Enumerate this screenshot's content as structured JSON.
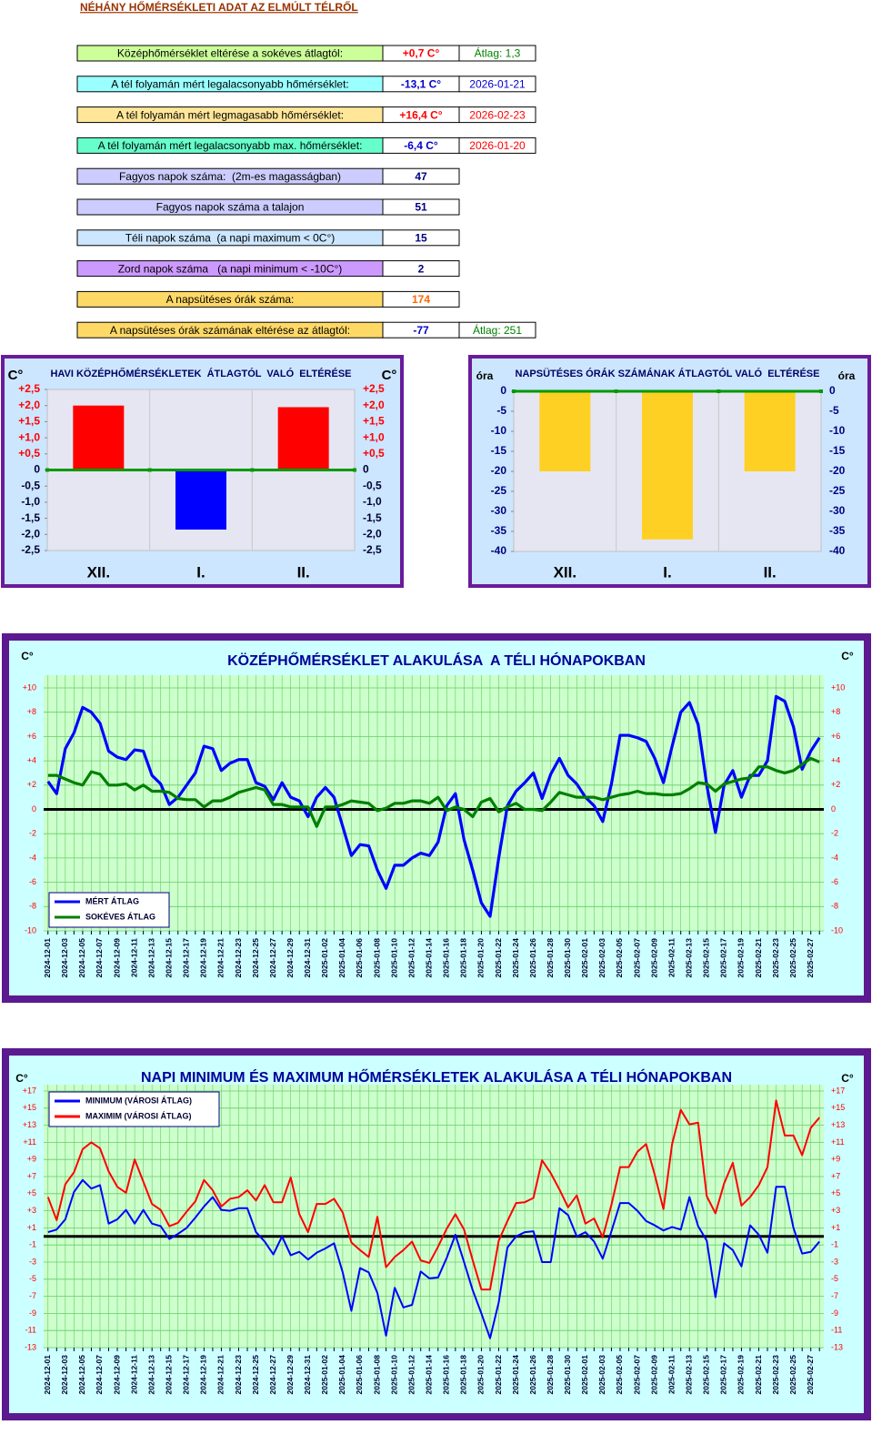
{
  "header": {
    "title": "NÉHÁNY HŐMÉRSÉKLETI ADAT AZ ELMÚLT TÉLRŐL"
  },
  "table": {
    "rows": [
      {
        "label": "Középhőmérséklet eltérése a sokéves átlagtól:",
        "value": "+0,7 C°",
        "extra": "Átlag: 1,3",
        "label_color": "#ccff99",
        "value_color": "#ff0000",
        "extra_color": "#008000"
      },
      {
        "label": "A tél folyamán mért legalacsonyabb hőmérséklet:",
        "value": "-13,1 C°",
        "extra": "2026-01-21",
        "label_color": "#99ffff",
        "value_color": "#0000cc",
        "extra_color": "#0000cc"
      },
      {
        "label": "A tél folyamán mért legmagasabb hőmérséklet:",
        "value": "+16,4 C°",
        "extra": "2026-02-23",
        "label_color": "#ffe699",
        "value_color": "#ff0000",
        "extra_color": "#ff0000"
      },
      {
        "label": "A tél folyamán mért legalacsonyabb max. hőmérséklet:",
        "value": "-6,4 C°",
        "extra": "2026-01-20",
        "label_color": "#66ffcc",
        "value_color": "#0000cc",
        "extra_color": "#ff0000"
      },
      {
        "label": "Fagyos napok száma:  (2m-es magasságban)",
        "value": 47,
        "label_color": "#ccccff",
        "value_color": "#000080"
      },
      {
        "label": "Fagyos napok száma a talajon",
        "value": 51,
        "label_color": "#ccccff",
        "value_color": "#000080"
      },
      {
        "label": "Téli napok száma  (a napi maximum < 0C°)",
        "value": 15,
        "label_color": "#cce6ff",
        "value_color": "#000080"
      },
      {
        "label": "Zord napok száma   (a napi minimum < -10C°)",
        "value": 2,
        "label_color": "#cc99ff",
        "value_color": "#000080"
      },
      {
        "label": "A napsütéses órák száma:",
        "value": 174,
        "label_color": "#ffd966",
        "value_color": "#ff6600"
      },
      {
        "label": "A napsütéses órák számának eltérése az átlagtól:",
        "value": -77,
        "extra": "Átlag: 251",
        "label_color": "#ffd966",
        "value_color": "#0000cc",
        "extra_color": "#008000"
      }
    ]
  },
  "chart_data": [
    {
      "type": "bar",
      "title": "HAVI KÖZÉPHŐMÉRSÉKLETEK  ÁTLAGTÓL  VALÓ  ELTÉRÉSE",
      "y_label": "C°",
      "categories": [
        "XII.",
        "I.",
        "II."
      ],
      "values": [
        2.0,
        -1.85,
        1.95
      ],
      "colors": [
        "#ff0000",
        "#0000ff",
        "#ff0000"
      ],
      "ylim": [
        -2.5,
        2.5
      ],
      "yticks": [
        {
          "value": 2.5,
          "label": "+2,5"
        },
        {
          "value": 2.0,
          "label": "+2,0"
        },
        {
          "value": 1.5,
          "label": "+1,5"
        },
        {
          "value": 1.0,
          "label": "+1,0"
        },
        {
          "value": 0.5,
          "label": "+0,5"
        },
        0,
        {
          "value": -0.5,
          "label": "-0,5"
        },
        {
          "value": -1.0,
          "label": "-1,0"
        },
        {
          "value": -1.5,
          "label": "-1,5"
        },
        {
          "value": -2.0,
          "label": "-2,0"
        },
        {
          "value": -2.5,
          "label": "-2,5"
        }
      ],
      "tick_colors": {
        "positive": "#ff0000",
        "other": "#000033"
      },
      "baseline_color": "#009900"
    },
    {
      "type": "bar",
      "title": "NAPSÜTÉSES ÓRÁK SZÁMÁNAK ÁTLAGTÓL VALÓ  ELTÉRÉSE",
      "y_label": "óra",
      "categories": [
        "XII.",
        "I.",
        "II."
      ],
      "values": [
        -20,
        -37,
        -20
      ],
      "colors": [
        "#ffd024",
        "#ffd024",
        "#ffd024"
      ],
      "ylim": [
        -40,
        0
      ],
      "yticks": [
        0,
        -5,
        -10,
        -15,
        -20,
        -25,
        -30,
        -35,
        -40
      ],
      "tick_colors": {
        "positive": "#000080",
        "other": "#000080"
      },
      "baseline_color": "#009900"
    },
    {
      "type": "line",
      "title": "KÖZÉPHŐMÉRSÉKLET ALAKULÁSA  A TÉLI HÓNAPOKBAN",
      "y_label": "C°",
      "x": [
        "2024-12-01",
        null,
        "2024-12-03",
        null,
        "2024-12-05",
        null,
        "2024-12-07",
        null,
        "2024-12-09",
        null,
        "2024-12-11",
        null,
        "2024-12-13",
        null,
        "2024-12-15",
        null,
        "2024-12-17",
        null,
        "2024-12-19",
        null,
        "2024-12-21",
        null,
        "2024-12-23",
        null,
        "2024-12-25",
        null,
        "2024-12-27",
        null,
        "2024-12-29",
        null,
        "2024-12-31",
        null,
        "2025-01-02",
        null,
        "2025-01-04",
        null,
        "2025-01-06",
        null,
        "2025-01-08",
        null,
        "2025-01-10",
        null,
        "2025-01-12",
        null,
        "2025-01-14",
        null,
        "2025-01-16",
        null,
        "2025-01-18",
        null,
        "2025-01-20",
        null,
        "2025-01-22",
        null,
        "2025-01-24",
        null,
        "2025-01-26",
        null,
        "2025-01-28",
        null,
        "2025-01-30",
        null,
        "2025-02-01",
        null,
        "2025-02-03",
        null,
        "2025-02-05",
        null,
        "2025-02-07",
        null,
        "2025-02-09",
        null,
        "2025-02-11",
        null,
        "2025-02-13",
        null,
        "2025-02-15",
        null,
        "2025-02-17",
        null,
        "2025-02-19",
        null,
        "2025-02-21",
        null,
        "2025-02-23",
        null,
        "2025-02-25",
        null,
        "2025-02-27",
        null
      ],
      "series": [
        {
          "name": "MÉRT ÁTLAG",
          "color": "#0000ff",
          "values": [
            2.3,
            1.3,
            5.0,
            6.3,
            8.4,
            8.0,
            7.1,
            4.8,
            4.3,
            4.1,
            4.9,
            4.8,
            2.8,
            2.1,
            0.4,
            1.0,
            2.0,
            3.0,
            5.2,
            5.0,
            3.2,
            3.8,
            4.1,
            4.1,
            2.2,
            1.9,
            0.8,
            2.2,
            1.0,
            0.7,
            -0.6,
            1.0,
            1.8,
            1.0,
            -1.4,
            -3.8,
            -2.9,
            -3.0,
            -5.0,
            -6.5,
            -4.6,
            -4.6,
            -4.0,
            -3.6,
            -3.8,
            -2.7,
            0.3,
            1.3,
            -2.5,
            -5.0,
            -7.7,
            -8.8,
            -4.0,
            0.3,
            1.5,
            2.2,
            3.0,
            0.9,
            2.9,
            4.2,
            2.8,
            2.1,
            1.0,
            0.3,
            -1.0,
            2.1,
            6.1,
            6.1,
            5.9,
            5.6,
            4.2,
            2.2,
            5.2,
            8.0,
            8.8,
            7.0,
            2.0,
            -1.9,
            2.0,
            3.2,
            1.0,
            2.8,
            2.8,
            4.0,
            9.3,
            8.9,
            6.8,
            3.3,
            4.8,
            5.9
          ]
        },
        {
          "name": "SOKÉVES ÁTLAG",
          "color": "#008000",
          "values": [
            2.8,
            2.8,
            2.5,
            2.2,
            2.0,
            3.1,
            2.9,
            2.0,
            2.0,
            2.1,
            1.6,
            2.0,
            1.5,
            1.5,
            1.4,
            0.9,
            0.8,
            0.8,
            0.2,
            0.7,
            0.7,
            1.0,
            1.4,
            1.6,
            1.8,
            1.6,
            0.4,
            0.4,
            0.2,
            0.2,
            0.2,
            -1.4,
            0.2,
            0.2,
            0.4,
            0.7,
            0.6,
            0.5,
            -0.1,
            0.1,
            0.5,
            0.5,
            0.7,
            0.7,
            0.5,
            1.0,
            -0.1,
            0.2,
            0.0,
            -0.6,
            0.6,
            0.9,
            -0.2,
            0.2,
            0.5,
            0.0,
            0.0,
            -0.1,
            0.6,
            1.4,
            1.2,
            1.0,
            1.0,
            1.0,
            0.8,
            1.0,
            1.2,
            1.3,
            1.5,
            1.3,
            1.3,
            1.2,
            1.2,
            1.3,
            1.7,
            2.2,
            2.1,
            1.5,
            2.1,
            2.3,
            2.5,
            2.6,
            3.5,
            3.5,
            3.2,
            3.0,
            3.2,
            3.7,
            4.2,
            3.9
          ]
        }
      ],
      "ylim": [
        -10,
        10
      ],
      "yticks": [
        {
          "value": 10,
          "label": "+10"
        },
        {
          "value": 8,
          "label": "+8"
        },
        {
          "value": 6,
          "label": "+6"
        },
        {
          "value": 4,
          "label": "+4"
        },
        {
          "value": 2,
          "label": "+2"
        },
        0,
        -2,
        -4,
        -6,
        -8,
        -10
      ],
      "grid": true,
      "zero_line": true,
      "legend": "lower left"
    },
    {
      "type": "line",
      "title": "NAPI MINIMUM ÉS MAXIMUM HŐMÉRSÉKLETEK ALAKULÁSA A TÉLI HÓNAPOKBAN",
      "y_label": "C°",
      "x": [
        "2024-12-01",
        null,
        "2024-12-03",
        null,
        "2024-12-05",
        null,
        "2024-12-07",
        null,
        "2024-12-09",
        null,
        "2024-12-11",
        null,
        "2024-12-13",
        null,
        "2024-12-15",
        null,
        "2024-12-17",
        null,
        "2024-12-19",
        null,
        "2024-12-21",
        null,
        "2024-12-23",
        null,
        "2024-12-25",
        null,
        "2024-12-27",
        null,
        "2024-12-29",
        null,
        "2024-12-31",
        null,
        "2025-01-02",
        null,
        "2025-01-04",
        null,
        "2025-01-06",
        null,
        "2025-01-08",
        null,
        "2025-01-10",
        null,
        "2025-01-12",
        null,
        "2025-01-14",
        null,
        "2025-01-16",
        null,
        "2025-01-18",
        null,
        "2025-01-20",
        null,
        "2025-01-22",
        null,
        "2025-01-24",
        null,
        "2025-01-26",
        null,
        "2025-01-28",
        null,
        "2025-01-30",
        null,
        "2025-02-01",
        null,
        "2025-02-03",
        null,
        "2025-02-05",
        null,
        "2025-02-07",
        null,
        "2025-02-09",
        null,
        "2025-02-11",
        null,
        "2025-02-13",
        null,
        "2025-02-15",
        null,
        "2025-02-17",
        null,
        "2025-02-19",
        null,
        "2025-02-21",
        null,
        "2025-02-23",
        null,
        "2025-02-25",
        null,
        "2025-02-27",
        null
      ],
      "series": [
        {
          "name": "MINIMUM (VÁROSI ÁTLAG)",
          "color": "#0000ff",
          "values": [
            0.5,
            0.8,
            2.0,
            5.2,
            6.6,
            5.6,
            6.0,
            1.5,
            2.0,
            3.1,
            1.5,
            3.1,
            1.5,
            1.2,
            -0.3,
            0.3,
            1.0,
            2.2,
            3.5,
            4.6,
            3.1,
            3.0,
            3.3,
            3.3,
            0.5,
            -0.6,
            -2.1,
            0.0,
            -2.2,
            -1.8,
            -2.7,
            -1.9,
            -1.4,
            -0.8,
            -4.2,
            -8.7,
            -3.7,
            -4.2,
            -6.6,
            -11.6,
            -6.0,
            -8.3,
            -8.0,
            -4.1,
            -4.9,
            -4.8,
            -2.5,
            0.2,
            -3.0,
            -6.3,
            -9.0,
            -11.9,
            -7.7,
            -1.3,
            0.0,
            0.5,
            0.6,
            -3.0,
            -3.0,
            3.3,
            2.5,
            0.0,
            0.5,
            -0.6,
            -2.6,
            0.6,
            3.9,
            3.9,
            3.0,
            1.8,
            1.3,
            0.7,
            1.1,
            0.8,
            4.6,
            1.2,
            -0.5,
            -7.1,
            -0.8,
            -1.6,
            -3.5,
            1.3,
            0.2,
            -1.9,
            5.8,
            5.8,
            1.0,
            -2.0,
            -1.8,
            -0.6
          ]
        },
        {
          "name": "MAXIMIM (VÁROSI ÁTLAG)",
          "color": "#ff0000",
          "values": [
            4.6,
            1.9,
            6.1,
            7.5,
            10.2,
            11.0,
            10.3,
            7.6,
            5.8,
            5.1,
            9.0,
            6.4,
            3.8,
            3.1,
            1.2,
            1.6,
            2.9,
            4.1,
            6.6,
            5.4,
            3.5,
            4.4,
            4.6,
            5.4,
            4.2,
            6.0,
            4.0,
            4.0,
            6.9,
            2.6,
            0.5,
            3.8,
            3.8,
            4.4,
            2.8,
            -0.7,
            -1.6,
            -2.4,
            2.3,
            -3.6,
            -2.4,
            -1.6,
            -0.6,
            -2.8,
            -3.1,
            -1.2,
            0.9,
            2.6,
            0.8,
            -2.8,
            -6.2,
            -6.2,
            -0.5,
            1.8,
            3.9,
            4.0,
            4.5,
            8.9,
            7.4,
            5.5,
            3.4,
            4.8,
            1.5,
            2.1,
            -0.1,
            3.7,
            8.1,
            8.1,
            9.9,
            10.8,
            7.2,
            3.2,
            10.8,
            14.8,
            13.1,
            13.3,
            4.7,
            2.7,
            6.2,
            8.6,
            3.6,
            4.6,
            6.0,
            8.1,
            15.9,
            11.8,
            11.8,
            9.5,
            12.7,
            13.9
          ]
        }
      ],
      "ylim": [
        -13,
        17
      ],
      "yticks": [
        {
          "value": 17,
          "label": "+17"
        },
        {
          "value": 15,
          "label": "+15"
        },
        {
          "value": 13,
          "label": "+13"
        },
        {
          "value": 11,
          "label": "+11"
        },
        {
          "value": 9,
          "label": "+9"
        },
        {
          "value": 7,
          "label": "+7"
        },
        {
          "value": 5,
          "label": "+5"
        },
        {
          "value": 3,
          "label": "+3"
        },
        {
          "value": 1,
          "label": "+1"
        },
        -1,
        -3,
        -5,
        -7,
        -9,
        -11,
        -13
      ],
      "grid": true,
      "zero_line": true,
      "legend": "upper left"
    }
  ]
}
